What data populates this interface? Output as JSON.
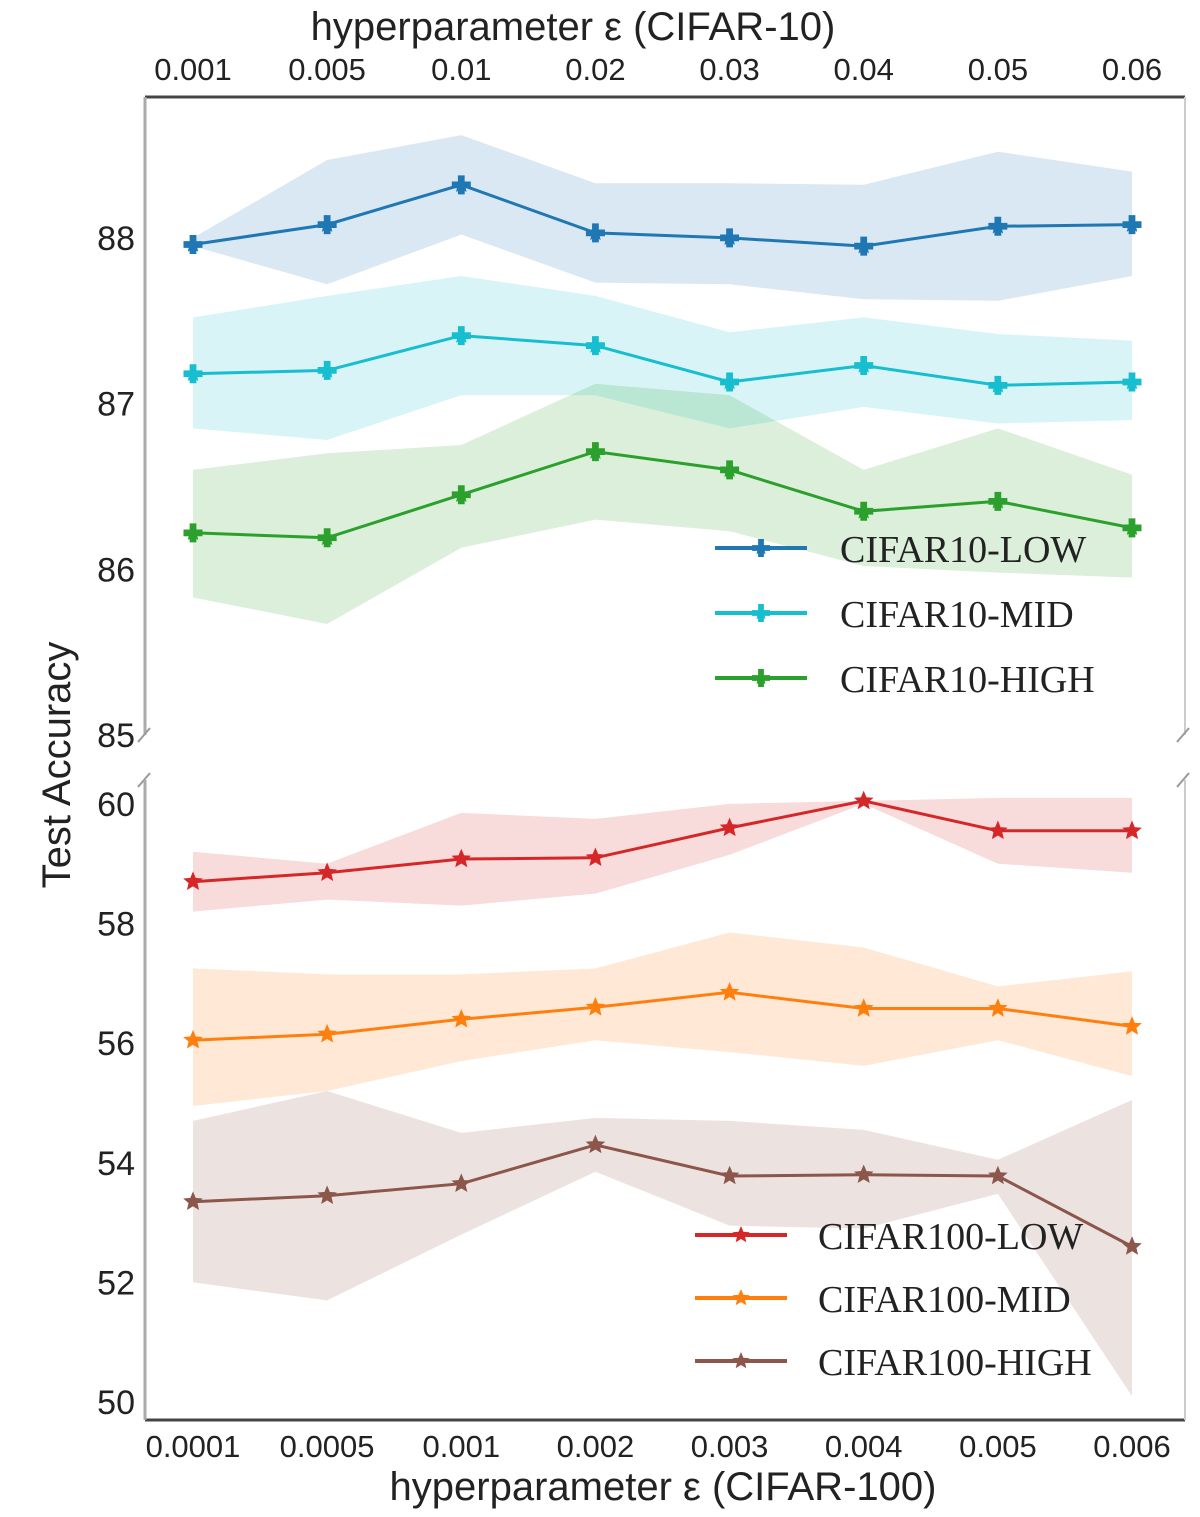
{
  "chart_data": [
    {
      "type": "line",
      "panel": "top",
      "title": "",
      "xlabel": "hyperparameter ε (CIFAR-10)",
      "ylabel": "Test Accuracy",
      "categories": [
        "0.001",
        "0.005",
        "0.01",
        "0.02",
        "0.03",
        "0.04",
        "0.05",
        "0.06"
      ],
      "ylim": [
        85,
        88.85
      ],
      "yticks": [
        85,
        86,
        87,
        88
      ],
      "grid": false,
      "legend_position": "lower-right",
      "series": [
        {
          "name": "CIFAR10-LOW",
          "color": "#1f77b4",
          "marker": "plus-star",
          "values": [
            87.96,
            88.08,
            88.32,
            88.03,
            88.0,
            87.95,
            88.07,
            88.08
          ],
          "lower": [
            87.95,
            87.72,
            88.02,
            87.73,
            87.72,
            87.63,
            87.62,
            87.77
          ],
          "upper": [
            88.0,
            88.47,
            88.62,
            88.33,
            88.33,
            88.32,
            88.52,
            88.4
          ]
        },
        {
          "name": "CIFAR10-MID",
          "color": "#17becf",
          "marker": "plus-star",
          "values": [
            87.18,
            87.2,
            87.41,
            87.35,
            87.13,
            87.23,
            87.11,
            87.13
          ],
          "lower": [
            86.85,
            86.78,
            87.05,
            87.05,
            86.85,
            86.98,
            86.88,
            86.9
          ],
          "upper": [
            87.52,
            87.65,
            87.77,
            87.65,
            87.43,
            87.52,
            87.42,
            87.38
          ]
        },
        {
          "name": "CIFAR10-HIGH",
          "color": "#2ca02c",
          "marker": "plus-star",
          "values": [
            86.22,
            86.19,
            86.45,
            86.71,
            86.6,
            86.35,
            86.41,
            86.25
          ],
          "lower": [
            85.83,
            85.67,
            86.13,
            86.3,
            86.23,
            86.02,
            85.98,
            85.95
          ],
          "upper": [
            86.6,
            86.7,
            86.75,
            87.12,
            87.05,
            86.6,
            86.85,
            86.57
          ]
        }
      ]
    },
    {
      "type": "line",
      "panel": "bottom",
      "title": "",
      "xlabel": "hyperparameter ε (CIFAR-100)",
      "ylabel": "Test Accuracy",
      "categories": [
        "0.0001",
        "0.0005",
        "0.001",
        "0.002",
        "0.003",
        "0.004",
        "0.005",
        "0.006"
      ],
      "ylim": [
        49.7,
        60.4
      ],
      "yticks": [
        50,
        52,
        54,
        56,
        58,
        60
      ],
      "grid": false,
      "legend_position": "lower-right",
      "series": [
        {
          "name": "CIFAR100-LOW",
          "color": "#d62728",
          "marker": "star",
          "values": [
            58.7,
            58.85,
            59.08,
            59.1,
            59.6,
            60.05,
            59.55,
            59.55
          ],
          "lower": [
            58.2,
            58.4,
            58.3,
            58.5,
            59.15,
            60.0,
            59.0,
            58.85
          ],
          "upper": [
            59.2,
            59.0,
            59.85,
            59.75,
            60.0,
            60.05,
            60.1,
            60.1
          ]
        },
        {
          "name": "CIFAR100-MID",
          "color": "#ff7f0e",
          "marker": "star",
          "values": [
            56.05,
            56.15,
            56.4,
            56.6,
            56.85,
            56.58,
            56.58,
            56.28
          ],
          "lower": [
            54.95,
            55.2,
            55.7,
            56.05,
            55.85,
            55.62,
            56.05,
            55.45
          ],
          "upper": [
            57.25,
            57.15,
            57.15,
            57.25,
            57.85,
            57.6,
            56.95,
            57.2
          ]
        },
        {
          "name": "CIFAR100-HIGH",
          "color": "#8c564b",
          "marker": "star",
          "values": [
            53.35,
            53.45,
            53.65,
            54.3,
            53.78,
            53.8,
            53.78,
            52.6
          ],
          "lower": [
            52.0,
            51.7,
            52.8,
            53.85,
            52.95,
            52.9,
            53.48,
            50.1
          ],
          "upper": [
            54.7,
            55.2,
            54.5,
            54.75,
            54.7,
            54.55,
            54.05,
            55.05
          ]
        }
      ]
    }
  ]
}
